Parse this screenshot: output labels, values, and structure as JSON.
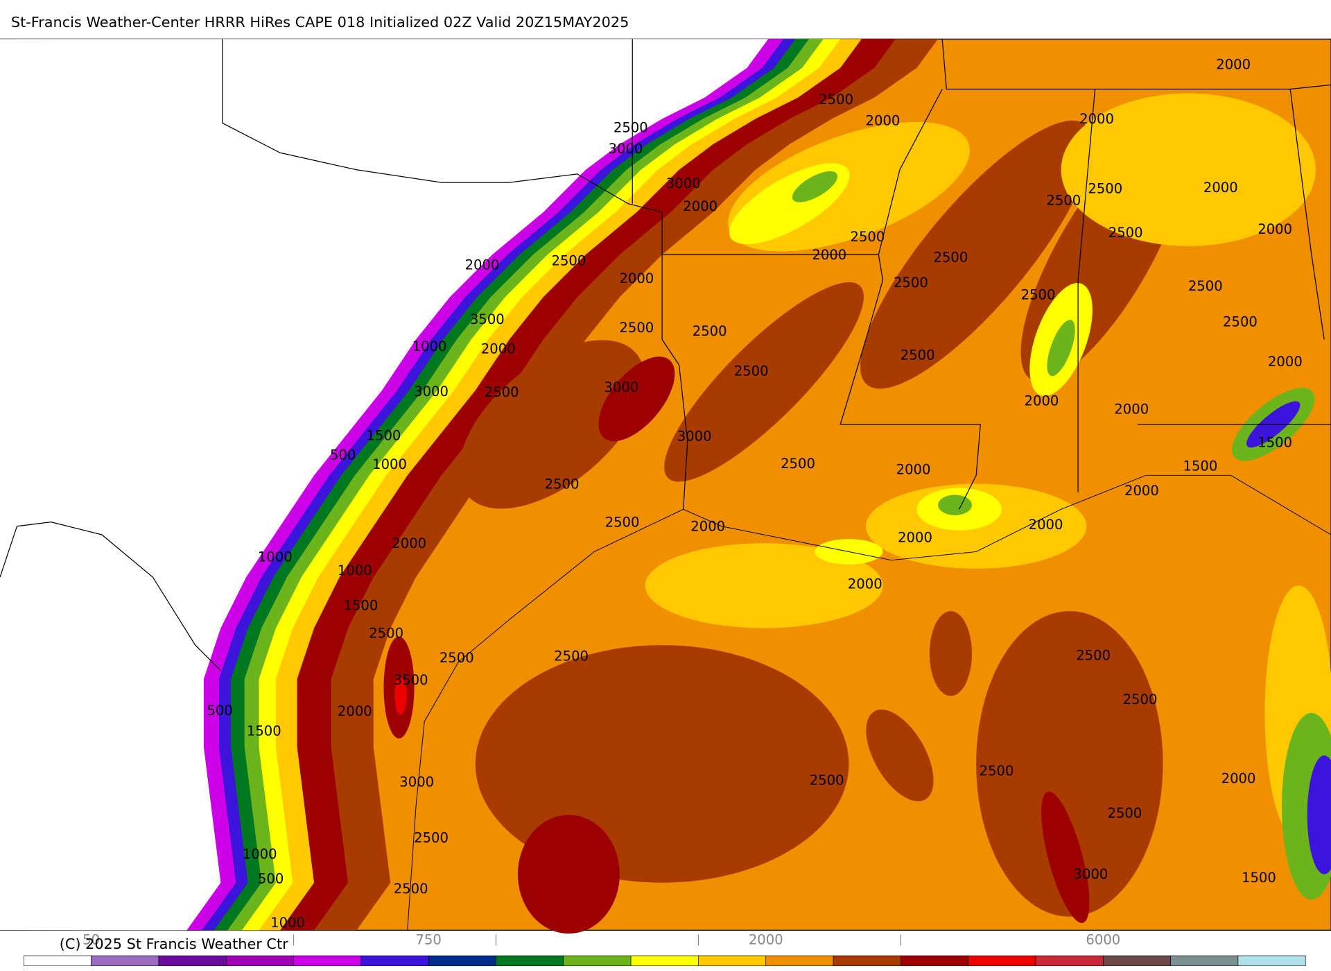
{
  "header": {
    "title": "St-Francis Weather-Center HRRR HiRes CAPE  018 Initialized  02Z Valid 20Z15MAY2025"
  },
  "footer": {
    "copyright": "(C) 2025 St Francis Weather Ctr"
  },
  "colorbar": {
    "colors": [
      "#ffffff",
      "#9c6cc0",
      "#6c0c9c",
      "#a000b4",
      "#cc00e6",
      "#3c14dc",
      "#002c8c",
      "#007820",
      "#6cb41c",
      "#ffff00",
      "#ffc800",
      "#f09000",
      "#a83c00",
      "#9c0000",
      "#ee0000",
      "#c82838",
      "#6c4848",
      "#7c9094",
      "#b0e0e8"
    ],
    "labels": [
      "50",
      "750",
      "2000",
      "6000"
    ]
  },
  "contour_labels": [
    "2500",
    "3000",
    "3000",
    "2000",
    "2500",
    "2000",
    "2000",
    "2000",
    "2500",
    "2500",
    "2000",
    "2000",
    "2500",
    "2500",
    "2000",
    "2500",
    "2000",
    "2500",
    "2000",
    "2500",
    "2500",
    "2500",
    "2500",
    "3500",
    "2500",
    "2500",
    "1000",
    "2000",
    "2500",
    "2000",
    "3000",
    "2500",
    "3000",
    "2500",
    "2000",
    "2000",
    "1500",
    "3000",
    "1500",
    "500",
    "1000",
    "2500",
    "1500",
    "2000",
    "2000",
    "2500",
    "2500",
    "2000",
    "2000",
    "2000",
    "2000",
    "1000",
    "1000",
    "2000",
    "1500",
    "2500",
    "2500",
    "2500",
    "2500",
    "3500",
    "2500",
    "500",
    "2000",
    "1500",
    "2500",
    "2500",
    "2000",
    "3000",
    "2500",
    "2500",
    "1000",
    "500",
    "3000",
    "1500",
    "2500",
    "1000"
  ]
}
